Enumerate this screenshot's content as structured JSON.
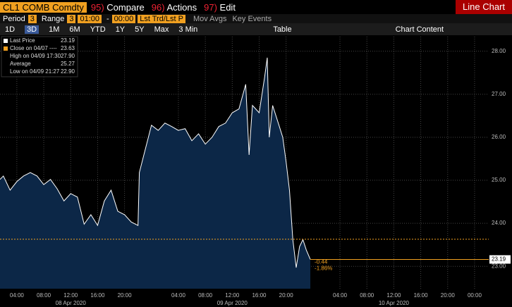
{
  "toolbar": {
    "ticker": "CL1 COMB Comdty",
    "menu": [
      {
        "num": "95)",
        "label": "Compare"
      },
      {
        "num": "96)",
        "label": "Actions"
      },
      {
        "num": "97)",
        "label": "Edit"
      }
    ],
    "view": "Line Chart"
  },
  "settings": {
    "period_label": "Period",
    "period": "3",
    "range_label": "Range",
    "range": "3",
    "from": "01:00",
    "sep": "-",
    "to": "00:00",
    "field": "Lst Trd/Lst P",
    "mov_avgs": "Mov Avgs",
    "key_events": "Key Events"
  },
  "ranges": {
    "buttons": [
      "1D",
      "3D",
      "1M",
      "6M",
      "YTD",
      "1Y",
      "5Y",
      "Max"
    ],
    "interval": "3 Min",
    "table": "Table",
    "content": "Chart Content"
  },
  "chart_data": {
    "type": "area",
    "color": "#ffffff",
    "fill": "#0c2747",
    "grid": true,
    "legend_items": [
      {
        "label": "Last Price",
        "value": "23.19",
        "color": "#ffffff"
      },
      {
        "label": "Close on 04/07 ----",
        "value": "23.63",
        "color": "#f0a020"
      },
      {
        "label": "High on 04/09 17:30",
        "value": "27.90"
      },
      {
        "label": "Average",
        "value": "25.27"
      },
      {
        "label": "Low on 04/09 21:27",
        "value": "22.90"
      }
    ],
    "reference_lines": [
      {
        "value": 23.63,
        "color": "#f0a020"
      }
    ],
    "last_label": "23.19",
    "change": "-0.44",
    "change_pct": "-1.86%",
    "x": [
      1.5,
      2,
      3,
      4,
      5,
      6,
      7,
      8,
      9,
      10,
      11,
      12,
      13,
      14,
      15,
      16,
      17,
      18,
      19,
      20,
      21,
      22,
      22.2,
      23,
      24,
      25,
      26,
      27,
      28,
      29,
      30,
      31,
      32,
      33,
      34,
      35,
      36,
      37,
      38,
      38.5,
      39,
      40,
      40.8,
      41.2,
      41.5,
      42,
      43,
      43.5,
      44,
      44.5,
      45,
      45.5,
      46,
      46.5,
      47,
      47.6
    ],
    "values": [
      25.02,
      25.1,
      24.77,
      24.97,
      25.1,
      25.18,
      25.1,
      24.9,
      25.02,
      24.8,
      24.52,
      24.69,
      24.61,
      23.98,
      24.2,
      23.95,
      24.52,
      24.77,
      24.28,
      24.2,
      24.03,
      23.95,
      25.18,
      25.67,
      26.28,
      26.16,
      26.33,
      26.25,
      26.16,
      26.2,
      25.92,
      26.08,
      25.84,
      26.0,
      26.25,
      26.33,
      26.57,
      26.66,
      27.23,
      25.59,
      26.74,
      26.57,
      27.39,
      27.85,
      26.0,
      26.74,
      26.25,
      26.0,
      25.43,
      24.77,
      23.62,
      22.97,
      23.46,
      23.62,
      23.38,
      23.16
    ],
    "xlim": [
      1.5,
      74.1
    ],
    "ylim": [
      22.48,
      28.34
    ],
    "xticks": [
      {
        "value": 4,
        "label": "04:00"
      },
      {
        "value": 8,
        "label": "08:00"
      },
      {
        "value": 12,
        "label": "12:00"
      },
      {
        "value": 16,
        "label": "16:00"
      },
      {
        "value": 20,
        "label": "20:00"
      },
      {
        "value": 28,
        "label": "04:00"
      },
      {
        "value": 32,
        "label": "08:00"
      },
      {
        "value": 36,
        "label": "12:00"
      },
      {
        "value": 40,
        "label": "16:00"
      },
      {
        "value": 44,
        "label": "20:00"
      },
      {
        "value": 52,
        "label": "04:00"
      },
      {
        "value": 56,
        "label": "08:00"
      },
      {
        "value": 60,
        "label": "12:00"
      },
      {
        "value": 64,
        "label": "16:00"
      },
      {
        "value": 68,
        "label": "20:00"
      },
      {
        "value": 72,
        "label": "00:00"
      }
    ],
    "date_ticks": [
      {
        "value": 12,
        "label": "08 Apr 2020"
      },
      {
        "value": 36,
        "label": "09 Apr 2020"
      },
      {
        "value": 60,
        "label": "10 Apr 2020"
      }
    ],
    "yticks": [
      {
        "value": 23,
        "label": "23.00"
      },
      {
        "value": 24,
        "label": "24.00"
      },
      {
        "value": 25,
        "label": "25.00"
      },
      {
        "value": 26,
        "label": "26.00"
      },
      {
        "value": 27,
        "label": "27.00"
      },
      {
        "value": 28,
        "label": "28.00"
      }
    ]
  }
}
